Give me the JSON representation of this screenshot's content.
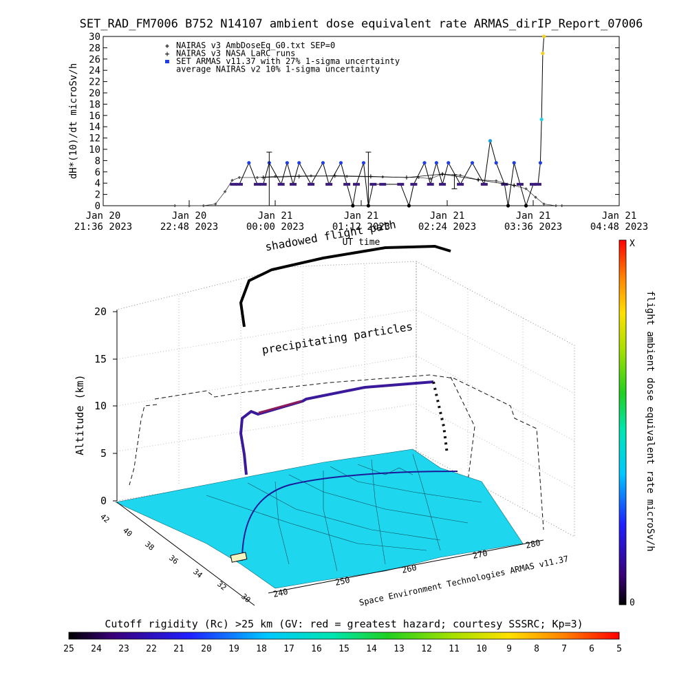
{
  "chart_data": [
    {
      "type": "line",
      "title": "SET_RAD_FM7006  B752 N14107 ambient dose equivalent rate ARMAS_dirIP_Report_07006",
      "xlabel": "UT time",
      "ylabel": "dH*(10)/dt microSv/h",
      "ylim": [
        0,
        30
      ],
      "xlim": [
        "2023-01-20T21:36",
        "2023-01-21T04:48"
      ],
      "y_ticks": [
        "0",
        "2",
        "4",
        "6",
        "8",
        "10",
        "12",
        "14",
        "16",
        "18",
        "20",
        "22",
        "24",
        "26",
        "28",
        "30"
      ],
      "x_ticks": [
        {
          "line1": "Jan 20",
          "line2": "21:36 2023",
          "t": "2023-01-20T21:36"
        },
        {
          "line1": "Jan 20",
          "line2": "22:48 2023",
          "t": "2023-01-20T22:48"
        },
        {
          "line1": "Jan 21",
          "line2": "00:00 2023",
          "t": "2023-01-21T00:00"
        },
        {
          "line1": "Jan 21",
          "line2": "01:12 2023",
          "t": "2023-01-21T01:12"
        },
        {
          "line1": "Jan 21",
          "line2": "02:24 2023",
          "t": "2023-01-21T02:24"
        },
        {
          "line1": "Jan 21",
          "line2": "03:36 2023",
          "t": "2023-01-21T03:36"
        },
        {
          "line1": "Jan 21",
          "line2": "04:48 2023",
          "t": "2023-01-21T04:48"
        }
      ],
      "legend": [
        {
          "label": "NAIRAS v3 AmbDoseEq_G0.txt SEP=0",
          "marker": "diamond",
          "color": "#555555"
        },
        {
          "label": "NAIRAS v3 NASA LaRC runs",
          "marker": "plus",
          "color": "#000000"
        },
        {
          "label": "SET ARMAS v11.37 with 27% 1-sigma uncertainty",
          "marker": "dot",
          "color": "#1f3fe0"
        },
        {
          "label": "average NAIRAS v2 10% 1-sigma uncertainty",
          "marker": "none",
          "color": "#000000"
        }
      ],
      "legend_position": "top-left",
      "series": [
        {
          "name": "NAIRAS v3 AmbDoseEq_G0.txt SEP=0",
          "color": "#444444",
          "points": [
            [
              "2023-01-20T22:36",
              0
            ],
            [
              "2023-01-20T22:48",
              0
            ],
            [
              "2023-01-20T23:00",
              0
            ],
            [
              "2023-01-20T23:10",
              0.3
            ],
            [
              "2023-01-20T23:18",
              2.5
            ],
            [
              "2023-01-20T23:24",
              4.5
            ],
            [
              "2023-01-20T23:30",
              5.0
            ],
            [
              "2023-01-20T23:45",
              5.0
            ],
            [
              "2023-01-21T00:00",
              5.2
            ],
            [
              "2023-01-21T00:30",
              5.3
            ],
            [
              "2023-01-21T01:00",
              5.2
            ],
            [
              "2023-01-21T01:30",
              5.1
            ],
            [
              "2023-01-21T02:00",
              5.0
            ],
            [
              "2023-01-21T02:10",
              4.8
            ],
            [
              "2023-01-21T02:20",
              5.6
            ],
            [
              "2023-01-21T02:35",
              5.4
            ],
            [
              "2023-01-21T02:50",
              4.6
            ],
            [
              "2023-01-21T03:05",
              4.4
            ],
            [
              "2023-01-21T03:20",
              3.6
            ],
            [
              "2023-01-21T03:30",
              3.0
            ],
            [
              "2023-01-21T03:38",
              1.5
            ],
            [
              "2023-01-21T03:45",
              0.3
            ],
            [
              "2023-01-21T03:55",
              0
            ],
            [
              "2023-01-21T04:00",
              0
            ]
          ]
        },
        {
          "name": "SET ARMAS v11.37 with 27% 1-sigma uncertainty",
          "color": "#2a1a8a",
          "points": [
            [
              "2023-01-20T23:25",
              3.8
            ],
            [
              "2023-01-20T23:30",
              3.8
            ],
            [
              "2023-01-20T23:38",
              7.6
            ],
            [
              "2023-01-20T23:45",
              3.8
            ],
            [
              "2023-01-20T23:50",
              3.8
            ],
            [
              "2023-01-20T23:55",
              7.6
            ],
            [
              "2023-01-21T00:05",
              3.8
            ],
            [
              "2023-01-21T00:10",
              7.6
            ],
            [
              "2023-01-21T00:15",
              3.8
            ],
            [
              "2023-01-21T00:20",
              7.6
            ],
            [
              "2023-01-21T00:30",
              3.8
            ],
            [
              "2023-01-21T00:40",
              7.6
            ],
            [
              "2023-01-21T00:45",
              3.8
            ],
            [
              "2023-01-21T00:55",
              7.6
            ],
            [
              "2023-01-21T01:00",
              3.8
            ],
            [
              "2023-01-21T01:05",
              0
            ],
            [
              "2023-01-21T01:08",
              3.8
            ],
            [
              "2023-01-21T01:14",
              7.6
            ],
            [
              "2023-01-21T01:18",
              0
            ],
            [
              "2023-01-21T01:22",
              3.8
            ],
            [
              "2023-01-21T01:30",
              3.8
            ],
            [
              "2023-01-21T01:45",
              3.8
            ],
            [
              "2023-01-21T01:52",
              0
            ],
            [
              "2023-01-21T01:56",
              3.8
            ],
            [
              "2023-01-21T02:05",
              7.6
            ],
            [
              "2023-01-21T02:10",
              3.8
            ],
            [
              "2023-01-21T02:15",
              7.6
            ],
            [
              "2023-01-21T02:20",
              3.8
            ],
            [
              "2023-01-21T02:25",
              7.6
            ],
            [
              "2023-01-21T02:35",
              3.8
            ],
            [
              "2023-01-21T02:45",
              7.6
            ],
            [
              "2023-01-21T02:55",
              3.8
            ],
            [
              "2023-01-21T03:00",
              11.5
            ],
            [
              "2023-01-21T03:05",
              7.6
            ],
            [
              "2023-01-21T03:12",
              3.8
            ],
            [
              "2023-01-21T03:15",
              0
            ],
            [
              "2023-01-21T03:20",
              7.6
            ],
            [
              "2023-01-21T03:25",
              3.8
            ],
            [
              "2023-01-21T03:30",
              0
            ],
            [
              "2023-01-21T03:36",
              3.8
            ],
            [
              "2023-01-21T03:40",
              3.8
            ],
            [
              "2023-01-21T03:42",
              7.6
            ],
            [
              "2023-01-21T03:43",
              15.3
            ],
            [
              "2023-01-21T03:44",
              27.0
            ],
            [
              "2023-01-21T03:45",
              30.0
            ]
          ]
        },
        {
          "name": "NAIRAS v3 NASA LaRC runs",
          "color": "#000000",
          "points": [
            [
              "2023-01-20T23:50",
              5.0
            ],
            [
              "2023-01-21T00:20",
              5.2
            ],
            [
              "2023-01-21T00:50",
              5.3
            ],
            [
              "2023-01-21T01:20",
              5.2
            ],
            [
              "2023-01-21T01:50",
              5.0
            ],
            [
              "2023-01-21T02:20",
              5.6
            ],
            [
              "2023-01-21T02:50",
              4.6
            ],
            [
              "2023-01-21T03:20",
              3.6
            ]
          ]
        }
      ],
      "error_bars": [
        {
          "t": "2023-01-20T23:55",
          "low": 0,
          "high": 9.5
        },
        {
          "t": "2023-01-21T01:18",
          "low": 0,
          "high": 9.5
        },
        {
          "t": "2023-01-21T02:30",
          "low": 3.0,
          "high": 5.5
        }
      ]
    },
    {
      "type": "3d-trajectory",
      "zlabel": "Altitude (km)",
      "z_ticks": [
        "0",
        "5",
        "10",
        "15",
        "20"
      ],
      "x_ticks": [
        "240",
        "250",
        "260",
        "270",
        "280"
      ],
      "y_ticks": [
        "42",
        "40",
        "38",
        "36",
        "34",
        "32",
        "30"
      ],
      "annotations": [
        "shadowed flight path",
        "precipitating particles",
        "Space Environment Technologies ARMAS v11.37"
      ],
      "colorbar_right": {
        "label": "flight ambient dose equivalent rate microSv/h",
        "top_label": "X",
        "bottom_label": "0"
      },
      "colorbar_bottom": {
        "label": "Cutoff rigidity (Rc) >25 km (GV: red = greatest hazard; courtesy SSSRC; Kp=3)",
        "ticks": [
          "25",
          "24",
          "23",
          "22",
          "21",
          "20",
          "19",
          "18",
          "17",
          "16",
          "15",
          "14",
          "13",
          "12",
          "11",
          "10",
          "9",
          "8",
          "7",
          "6",
          "5"
        ]
      }
    }
  ]
}
